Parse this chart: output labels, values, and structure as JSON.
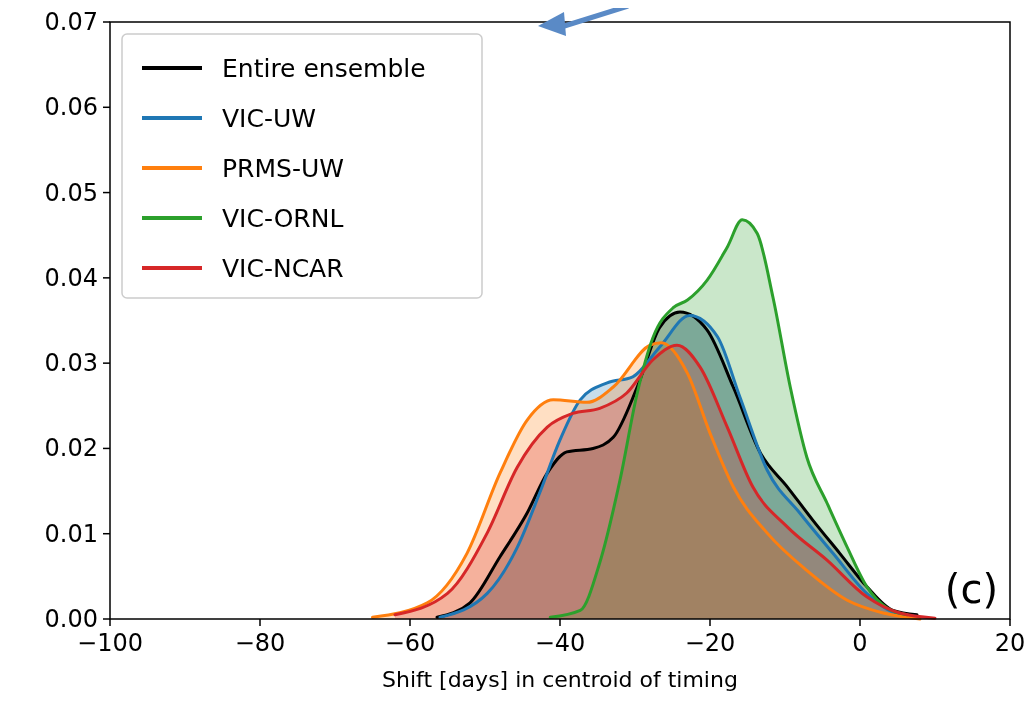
{
  "chart_data": {
    "type": "area",
    "xlabel": "Shift [days] in centroid of timing",
    "xlim": [
      -100,
      20
    ],
    "xticks": [
      -100,
      -80,
      -60,
      -40,
      -20,
      0,
      20
    ],
    "ylim": [
      0,
      0.07
    ],
    "yticks": [
      {
        "value": 0,
        "label": "0.00"
      },
      0.01,
      0.02,
      0.03,
      0.04,
      0.05,
      0.06,
      0.07
    ],
    "grid": false,
    "legend": "top left",
    "annotations": [
      "(c)"
    ],
    "series": [
      {
        "name": "Entire ensemble",
        "color": "#000000",
        "x": [
          -56.4,
          -52,
          -48,
          -44.4,
          -41.7,
          -39.1,
          -35.6,
          -32.9,
          -29.7,
          -26.7,
          -24,
          -20.4,
          -16.9,
          -13.3,
          -9.7,
          -6.3,
          -2.7,
          0.9,
          4.4,
          7.6
        ],
        "values": [
          0.0002,
          0.0019,
          0.0073,
          0.0124,
          0.0171,
          0.0196,
          0.02,
          0.0213,
          0.0272,
          0.0342,
          0.036,
          0.0339,
          0.0272,
          0.0195,
          0.0155,
          0.0116,
          0.0077,
          0.0038,
          0.001,
          0.0005
        ]
      },
      {
        "name": "VIC-UW",
        "color": "#1f77b4",
        "x": [
          -56,
          -49.7,
          -45.7,
          -42.7,
          -40,
          -37.3,
          -33.7,
          -30.3,
          -26.7,
          -22.7,
          -19,
          -16,
          -12.4,
          -8,
          -3.6,
          0.9,
          4.4,
          7.6
        ],
        "values": [
          0.0002,
          0.003,
          0.0084,
          0.0148,
          0.021,
          0.0257,
          0.0277,
          0.0284,
          0.0319,
          0.0356,
          0.0331,
          0.026,
          0.0175,
          0.0124,
          0.0077,
          0.003,
          0.0008,
          0.0003
        ]
      },
      {
        "name": "PRMS-UW",
        "color": "#ff7f0e",
        "x": [
          -65,
          -57.7,
          -52.4,
          -48,
          -44.4,
          -40.9,
          -36.4,
          -32.9,
          -28,
          -26.5,
          -23,
          -20,
          -16.9,
          -12.4,
          -7.1,
          -1.7,
          3.1,
          8
        ],
        "values": [
          0.0002,
          0.0019,
          0.0077,
          0.0171,
          0.0233,
          0.0257,
          0.0254,
          0.0272,
          0.0321,
          0.0324,
          0.0288,
          0.0218,
          0.0155,
          0.0101,
          0.0057,
          0.0022,
          0.0007,
          0
        ]
      },
      {
        "name": "VIC-ORNL",
        "color": "#2ca02c",
        "x": [
          -41.3,
          -37.3,
          -34.7,
          -32,
          -29.7,
          -27.6,
          -24.9,
          -23,
          -20.4,
          -17.7,
          -15.7,
          -13.7,
          -11.6,
          -9.3,
          -7.1,
          -4.4,
          -1.7,
          0.9,
          3.6,
          6.3
        ],
        "values": [
          0.0002,
          0.001,
          0.0066,
          0.0163,
          0.0265,
          0.033,
          0.0365,
          0.0374,
          0.0397,
          0.0436,
          0.0468,
          0.0452,
          0.0377,
          0.0272,
          0.019,
          0.0136,
          0.0084,
          0.0038,
          0.0013,
          0.0005
        ]
      },
      {
        "name": "VIC-NCAR",
        "color": "#d62728",
        "x": [
          -62,
          -55,
          -49.7,
          -45.7,
          -41.7,
          -38.3,
          -34.7,
          -31.1,
          -27.6,
          -24.4,
          -21.3,
          -17.7,
          -14.3,
          -9.7,
          -4.4,
          0.9,
          5.3,
          10
        ],
        "values": [
          0.0005,
          0.003,
          0.0101,
          0.0178,
          0.0225,
          0.0241,
          0.0247,
          0.0265,
          0.0304,
          0.0321,
          0.0295,
          0.0225,
          0.0155,
          0.0108,
          0.0069,
          0.0026,
          0.0007,
          0.0001
        ]
      }
    ]
  }
}
